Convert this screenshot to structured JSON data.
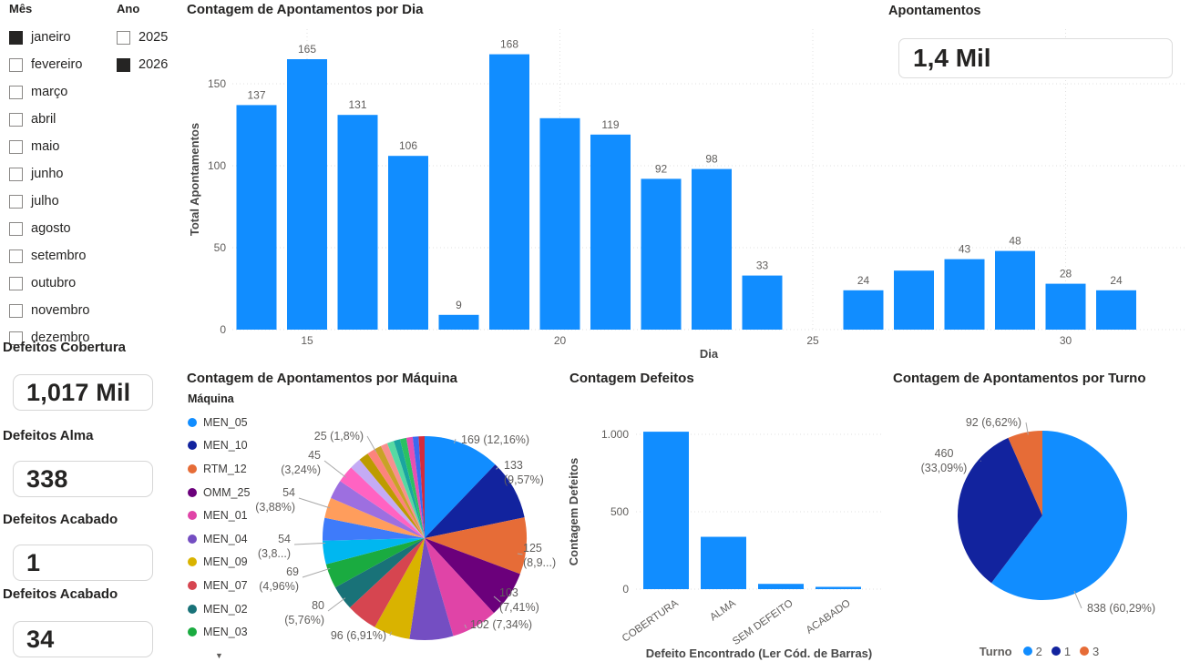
{
  "slicers": {
    "month": {
      "title": "Mês",
      "items": [
        {
          "label": "janeiro",
          "checked": true
        },
        {
          "label": "fevereiro",
          "checked": false
        },
        {
          "label": "março",
          "checked": false
        },
        {
          "label": "abril",
          "checked": false
        },
        {
          "label": "maio",
          "checked": false
        },
        {
          "label": "junho",
          "checked": false
        },
        {
          "label": "julho",
          "checked": false
        },
        {
          "label": "agosto",
          "checked": false
        },
        {
          "label": "setembro",
          "checked": false
        },
        {
          "label": "outubro",
          "checked": false
        },
        {
          "label": "novembro",
          "checked": false
        },
        {
          "label": "dezembro",
          "checked": false
        }
      ]
    },
    "year": {
      "title": "Ano",
      "items": [
        {
          "label": "2025",
          "checked": false
        },
        {
          "label": "2026",
          "checked": true
        }
      ]
    }
  },
  "kpis": [
    {
      "title": "Defeitos Cobertura",
      "value": "1,017 Mil"
    },
    {
      "title": "Defeitos Alma",
      "value": "338"
    },
    {
      "title": "Defeitos Acabado",
      "value": "1"
    },
    {
      "title": "Defeitos Acabado",
      "value": "34"
    }
  ],
  "card": {
    "title": "Apontamentos",
    "value": "1,4 Mil"
  },
  "colors": {
    "bar_blue": "#118DFF",
    "axis_text": "#605E5C",
    "grid": "#E0E0E0",
    "leader": "#A8A8A8",
    "title_text": "#252423"
  },
  "chart_data": [
    {
      "id": "apontamentos_por_dia",
      "type": "bar",
      "title": "Contagem de Apontamentos por Dia",
      "xlabel": "Dia",
      "ylabel": "Total Apontamentos",
      "yticks": [
        0,
        50,
        100,
        150
      ],
      "ylim": [
        0,
        183
      ],
      "xticks": [
        15,
        20,
        25,
        30
      ],
      "bars": [
        {
          "day": 14,
          "value": 137,
          "label": "137"
        },
        {
          "day": 15,
          "value": 165,
          "label": "165"
        },
        {
          "day": 16,
          "value": 131,
          "label": "131"
        },
        {
          "day": 17,
          "value": 106,
          "label": "106"
        },
        {
          "day": 18,
          "value": 9,
          "label": "9"
        },
        {
          "day": 19,
          "value": 168,
          "label": "168"
        },
        {
          "day": 20,
          "value": 129,
          "label": ""
        },
        {
          "day": 21,
          "value": 119,
          "label": "119"
        },
        {
          "day": 22,
          "value": 92,
          "label": "92"
        },
        {
          "day": 23,
          "value": 98,
          "label": "98"
        },
        {
          "day": 24,
          "value": 33,
          "label": "33"
        },
        {
          "day": 26,
          "value": 24,
          "label": "24"
        },
        {
          "day": 27,
          "value": 36,
          "label": ""
        },
        {
          "day": 28,
          "value": 43,
          "label": "43"
        },
        {
          "day": 29,
          "value": 48,
          "label": "48"
        },
        {
          "day": 30,
          "value": 28,
          "label": "28"
        },
        {
          "day": 31,
          "value": 24,
          "label": "24"
        }
      ]
    },
    {
      "id": "apontamentos_por_maquina",
      "type": "pie",
      "title": "Contagem de Apontamentos por Máquina",
      "legend_title": "Máquina",
      "legend": [
        {
          "label": "MEN_05",
          "color": "#118DFF"
        },
        {
          "label": "MEN_10",
          "color": "#12239E"
        },
        {
          "label": "RTM_12",
          "color": "#E66C37"
        },
        {
          "label": "OMM_25",
          "color": "#6B007B"
        },
        {
          "label": "MEN_01",
          "color": "#E044A7"
        },
        {
          "label": "MEN_04",
          "color": "#744EC2"
        },
        {
          "label": "MEN_09",
          "color": "#D9B300"
        },
        {
          "label": "MEN_07",
          "color": "#D64550"
        },
        {
          "label": "MEN_02",
          "color": "#197278"
        },
        {
          "label": "MEN_03",
          "color": "#1AAB40"
        }
      ],
      "total": 1390,
      "slices": [
        {
          "name": "MEN_05",
          "value": 169,
          "color": "#118DFF"
        },
        {
          "name": "MEN_10",
          "value": 133,
          "color": "#12239E"
        },
        {
          "name": "RTM_12",
          "value": 125,
          "color": "#E66C37"
        },
        {
          "name": "OMM_25",
          "value": 103,
          "color": "#6B007B"
        },
        {
          "name": "MEN_01",
          "value": 102,
          "color": "#E044A7"
        },
        {
          "name": "MEN_04",
          "value": 96,
          "color": "#744EC2"
        },
        {
          "name": "MEN_09",
          "value": 80,
          "color": "#D9B300"
        },
        {
          "name": "MEN_07",
          "value": 69,
          "color": "#D64550"
        },
        {
          "name": "MEN_02",
          "value": 54,
          "color": "#197278"
        },
        {
          "name": "MEN_03",
          "value": 54,
          "color": "#1AAB40"
        },
        {
          "name": "",
          "value": 52,
          "color": "#00B7F0"
        },
        {
          "name": "",
          "value": 50,
          "color": "#3E7BFA"
        },
        {
          "name": "",
          "value": 45,
          "color": "#FF9D5C"
        },
        {
          "name": "",
          "value": 42,
          "color": "#9D6FE0"
        },
        {
          "name": "",
          "value": 38,
          "color": "#FF63C2"
        },
        {
          "name": "",
          "value": 25,
          "color": "#C4ABF5"
        },
        {
          "name": "",
          "value": 22,
          "color": "#BD9B00"
        },
        {
          "name": "",
          "value": 18,
          "color": "#FC837C"
        },
        {
          "name": "",
          "value": 15,
          "color": "#C9A227"
        },
        {
          "name": "",
          "value": 15,
          "color": "#F88F8F"
        },
        {
          "name": "",
          "value": 15,
          "color": "#57D9A3"
        },
        {
          "name": "",
          "value": 14,
          "color": "#1AA5A0"
        },
        {
          "name": "",
          "value": 14,
          "color": "#2BC162"
        },
        {
          "name": "",
          "value": 14,
          "color": "#E84FB1"
        },
        {
          "name": "",
          "value": 13,
          "color": "#3B6AF0"
        },
        {
          "name": "",
          "value": 13,
          "color": "#D42B3C"
        }
      ],
      "labels": [
        {
          "lines": [
            "169 (12,16%)"
          ],
          "x": 306,
          "y": 82,
          "anchor": "start",
          "ax": 300,
          "ay": 77
        },
        {
          "lines": [
            "133",
            "(9,57%)"
          ],
          "x": 353,
          "y": 110,
          "anchor": "start",
          "ax": 347,
          "ay": 108
        },
        {
          "lines": [
            "125",
            "(8,9...)"
          ],
          "x": 374,
          "y": 201,
          "anchor": "start",
          "ax": 368,
          "ay": 203
        },
        {
          "lines": [
            "103",
            "(7,41%)"
          ],
          "x": 348,
          "y": 250,
          "anchor": "start",
          "ax": 342,
          "ay": 250
        },
        {
          "lines": [
            "102 (7,34%)"
          ],
          "x": 316,
          "y": 285,
          "anchor": "start",
          "ax": 310,
          "ay": 281
        },
        {
          "lines": [
            "96 (6,91%)"
          ],
          "x": 224,
          "y": 297,
          "anchor": "end",
          "ax": 228,
          "ay": 293
        },
        {
          "lines": [
            "80",
            "(5,76%)"
          ],
          "x": 156,
          "y": 264,
          "anchor": "end",
          "ax": 160,
          "ay": 266
        },
        {
          "lines": [
            "69",
            "(4,96%)"
          ],
          "x": 128,
          "y": 227,
          "anchor": "end",
          "ax": 132,
          "ay": 229
        },
        {
          "lines": [
            "54",
            "(3,8...)"
          ],
          "x": 119,
          "y": 191,
          "anchor": "end",
          "ax": 123,
          "ay": 193
        },
        {
          "lines": [
            "54",
            "(3,88%)"
          ],
          "x": 124,
          "y": 140,
          "anchor": "end",
          "ax": 128,
          "ay": 142
        },
        {
          "lines": [
            "45",
            "(3,24%)"
          ],
          "x": 152,
          "y": 99,
          "anchor": "end",
          "ax": 156,
          "ay": 101
        },
        {
          "lines": [
            "25 (1,8%)"
          ],
          "x": 199,
          "y": 78,
          "anchor": "end",
          "ax": 203,
          "ay": 74
        }
      ],
      "geom": {
        "cx": 266,
        "cy": 186,
        "r": 112
      }
    },
    {
      "id": "contagem_defeitos",
      "type": "bar",
      "title": "Contagem Defeitos",
      "xlabel": "Defeito Encontrado (Ler Cód. de Barras)",
      "ylabel": "Contagem Defeitos",
      "yticks": [
        {
          "v": 0,
          "label": "0"
        },
        {
          "v": 500,
          "label": "500"
        },
        {
          "v": 1000,
          "label": "1.000"
        }
      ],
      "ylim": [
        0,
        1100
      ],
      "categories": [
        "COBERTURA",
        "ALMA",
        "SEM DEFEITO",
        "ACABADO"
      ],
      "values": [
        1017,
        338,
        34,
        12
      ]
    },
    {
      "id": "apontamentos_por_turno",
      "type": "pie",
      "title": "Contagem de Apontamentos por Turno",
      "legend_title": "Turno",
      "legend": [
        {
          "label": "2",
          "color": "#118DFF"
        },
        {
          "label": "1",
          "color": "#12239E"
        },
        {
          "label": "3",
          "color": "#E66C37"
        }
      ],
      "total": 1390,
      "slices": [
        {
          "name": "2",
          "value": 838,
          "color": "#118DFF"
        },
        {
          "name": "1",
          "value": 460,
          "color": "#12239E"
        },
        {
          "name": "3",
          "value": 92,
          "color": "#E66C37"
        }
      ],
      "labels": [
        {
          "lines": [
            "92 (6,62%)"
          ],
          "x": 146,
          "y": 68,
          "anchor": "end",
          "ax": 151,
          "ay": 64
        },
        {
          "lines": [
            "460",
            "(33,09%)"
          ],
          "x": 61,
          "y": 102,
          "anchor": "middle",
          "ax": 101,
          "ay": 106
        },
        {
          "lines": [
            "838 (60,29%)"
          ],
          "x": 218,
          "y": 272,
          "anchor": "start",
          "ax": 212,
          "ay": 268
        }
      ],
      "geom": {
        "cx": 169,
        "cy": 166,
        "r": 93
      }
    }
  ]
}
